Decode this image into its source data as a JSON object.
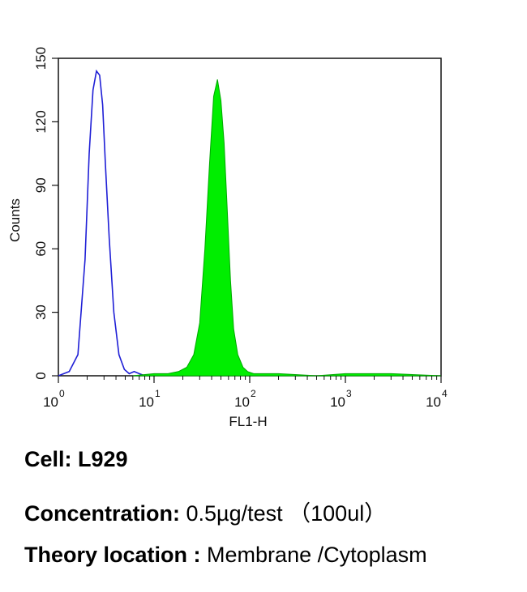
{
  "chart_data": {
    "type": "area",
    "xlabel": "FL1-H",
    "ylabel": "Counts",
    "xscale": "log",
    "xlim": [
      1,
      10000
    ],
    "ylim": [
      0,
      150
    ],
    "yticks": [
      0,
      30,
      60,
      90,
      120,
      150
    ],
    "xticks": [
      {
        "base": "10",
        "exp": "0"
      },
      {
        "base": "10",
        "exp": "1"
      },
      {
        "base": "10",
        "exp": "2"
      },
      {
        "base": "10",
        "exp": "3"
      },
      {
        "base": "10",
        "exp": "4"
      }
    ],
    "grid": false,
    "series": [
      {
        "style": "outline",
        "color": "#1f1fd6",
        "x": [
          1.0,
          1.3,
          1.6,
          1.9,
          2.1,
          2.3,
          2.5,
          2.7,
          2.9,
          3.1,
          3.4,
          3.8,
          4.3,
          4.9,
          5.5,
          6.2,
          7.0,
          8.0
        ],
        "y": [
          0,
          2,
          10,
          55,
          105,
          135,
          144,
          142,
          128,
          100,
          65,
          30,
          10,
          3,
          1,
          2,
          1,
          0
        ]
      },
      {
        "style": "filled",
        "color": "#00ee00",
        "x": [
          6,
          10,
          14,
          18,
          22,
          26,
          30,
          34,
          38,
          42,
          46,
          50,
          54,
          58,
          63,
          68,
          75,
          85,
          95,
          110,
          130,
          200,
          500,
          1000,
          3000,
          10000
        ],
        "y": [
          0,
          1,
          1,
          2,
          4,
          10,
          25,
          60,
          100,
          132,
          140,
          130,
          110,
          80,
          45,
          22,
          10,
          4,
          2,
          1,
          1,
          1,
          0,
          1,
          1,
          0
        ]
      }
    ]
  },
  "captions": {
    "cell": {
      "label": "Cell:",
      "value": "L929"
    },
    "concentration": {
      "label": "Concentration:",
      "value": "0.5µg/test （100ul）"
    },
    "location": {
      "label": "Theory location :",
      "value": "Membrane /Cytoplasm"
    }
  }
}
